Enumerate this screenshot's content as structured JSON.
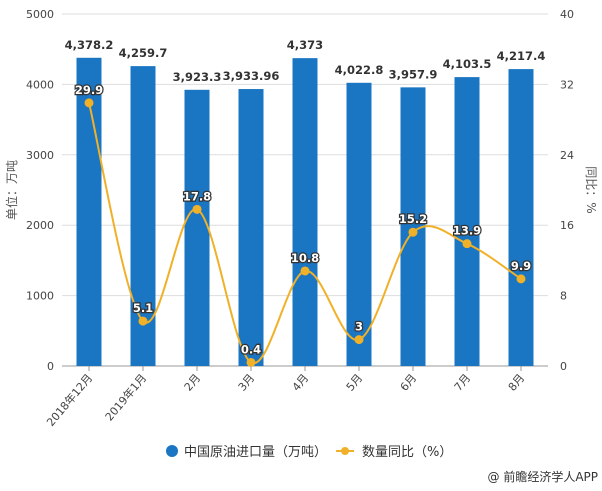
{
  "chart_data": {
    "type": "bar+line",
    "categories": [
      "2018年12月",
      "2019年1月",
      "2月",
      "3月",
      "4月",
      "5月",
      "6月",
      "7月",
      "8月"
    ],
    "series": [
      {
        "name": "中国原油进口量（万吨）",
        "type": "bar",
        "axis": "left",
        "values": [
          4378.2,
          4259.7,
          3923.3,
          3933.96,
          4373,
          4022.8,
          3957.9,
          4103.5,
          4217.4
        ],
        "labels": [
          "4,378.2",
          "4,259.7",
          "3,923.3",
          "3,933.96",
          "4,373",
          "4,022.8",
          "3,957.9",
          "4,103.5",
          "4,217.4"
        ],
        "color": "#1a75c2"
      },
      {
        "name": "数量同比（%）",
        "type": "line",
        "axis": "right",
        "values": [
          29.9,
          5.1,
          17.8,
          0.4,
          10.8,
          3,
          15.2,
          13.9,
          9.9
        ],
        "labels": [
          "29.9",
          "5.1",
          "17.8",
          "0.4",
          "10.8",
          "3",
          "15.2",
          "13.9",
          "9.9"
        ],
        "color": "#f0b128"
      }
    ],
    "ylabel": "单位：万吨",
    "y2label": "同比：%",
    "ylim": [
      0,
      5000
    ],
    "y2lim": [
      0,
      40
    ],
    "yticks": [
      "0",
      "1000",
      "2000",
      "3000",
      "4000",
      "5000"
    ],
    "y2ticks": [
      "0",
      "8",
      "16",
      "24",
      "32",
      "40"
    ],
    "grid": true,
    "legend": "bottom"
  },
  "source": "@ 前瞻经济学人APP"
}
